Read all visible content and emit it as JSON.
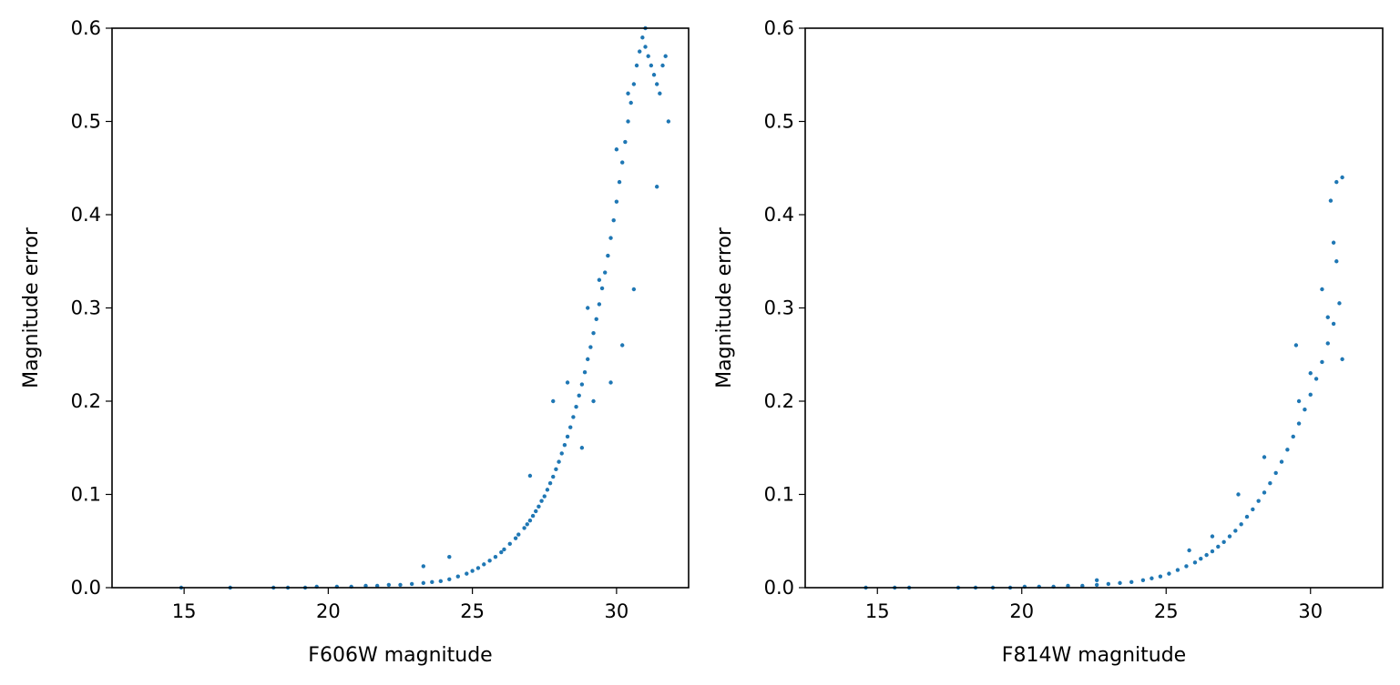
{
  "colors": {
    "marker": "#1f77b4",
    "axis": "#000000",
    "background": "#ffffff"
  },
  "chart_data": [
    {
      "type": "scatter",
      "xlabel": "F606W magnitude",
      "ylabel": "Magnitude error",
      "xlim": [
        12.5,
        32.5
      ],
      "ylim": [
        0.0,
        0.6
      ],
      "xticks": [
        15,
        20,
        25,
        30
      ],
      "yticks": [
        0.0,
        0.1,
        0.2,
        0.3,
        0.4,
        0.5,
        0.6
      ],
      "xtick_labels": [
        "15",
        "20",
        "25",
        "30"
      ],
      "ytick_labels": [
        "0.0",
        "0.1",
        "0.2",
        "0.3",
        "0.4",
        "0.5",
        "0.6"
      ],
      "grid": false,
      "series": [
        {
          "color": "#1f77b4",
          "x": [
            14.9,
            16.6,
            18.1,
            18.6,
            19.2,
            19.6,
            20.3,
            20.8,
            21.3,
            21.7,
            22.1,
            22.5,
            22.9,
            23.3,
            23.6,
            23.9,
            24.2,
            24.5,
            24.8,
            25.0,
            25.2,
            25.4,
            25.6,
            25.8,
            26.0,
            26.1,
            26.3,
            26.5,
            26.6,
            26.8,
            26.9,
            27.0,
            27.1,
            27.2,
            27.3,
            27.4,
            27.5,
            27.6,
            27.7,
            27.8,
            27.9,
            28.0,
            28.1,
            28.2,
            28.3,
            28.4,
            28.5,
            28.6,
            28.7,
            28.8,
            28.9,
            29.0,
            29.1,
            29.2,
            29.3,
            29.4,
            29.5,
            29.6,
            29.7,
            29.8,
            29.9,
            30.0,
            30.1,
            30.2,
            30.3,
            30.4,
            30.5,
            30.6,
            30.7,
            30.8,
            30.9,
            31.0,
            31.1,
            31.2,
            31.3,
            31.4,
            31.5,
            31.6,
            31.7,
            31.8,
            23.3,
            24.2,
            27.0,
            27.8,
            28.3,
            29.0,
            29.4,
            30.0,
            30.4,
            31.0,
            29.8,
            30.2,
            30.6,
            31.4,
            29.2,
            28.8
          ],
          "y": [
            0.0,
            0.0,
            0.0,
            0.0,
            0.0,
            0.001,
            0.001,
            0.001,
            0.002,
            0.002,
            0.003,
            0.003,
            0.004,
            0.005,
            0.006,
            0.007,
            0.009,
            0.012,
            0.015,
            0.018,
            0.021,
            0.025,
            0.029,
            0.033,
            0.038,
            0.041,
            0.047,
            0.053,
            0.057,
            0.064,
            0.068,
            0.072,
            0.077,
            0.082,
            0.087,
            0.093,
            0.098,
            0.105,
            0.112,
            0.119,
            0.127,
            0.135,
            0.144,
            0.153,
            0.162,
            0.172,
            0.183,
            0.194,
            0.206,
            0.218,
            0.231,
            0.245,
            0.258,
            0.273,
            0.288,
            0.304,
            0.321,
            0.338,
            0.356,
            0.375,
            0.394,
            0.414,
            0.435,
            0.456,
            0.478,
            0.5,
            0.52,
            0.54,
            0.56,
            0.575,
            0.59,
            0.58,
            0.57,
            0.56,
            0.55,
            0.54,
            0.53,
            0.56,
            0.57,
            0.5,
            0.023,
            0.033,
            0.12,
            0.2,
            0.22,
            0.3,
            0.33,
            0.47,
            0.53,
            0.6,
            0.22,
            0.26,
            0.32,
            0.43,
            0.2,
            0.15
          ]
        }
      ]
    },
    {
      "type": "scatter",
      "xlabel": "F814W magnitude",
      "ylabel": "Magnitude error",
      "xlim": [
        12.5,
        32.5
      ],
      "ylim": [
        0.0,
        0.6
      ],
      "xticks": [
        15,
        20,
        25,
        30
      ],
      "yticks": [
        0.0,
        0.1,
        0.2,
        0.3,
        0.4,
        0.5,
        0.6
      ],
      "xtick_labels": [
        "15",
        "20",
        "25",
        "30"
      ],
      "ytick_labels": [
        "0.0",
        "0.1",
        "0.2",
        "0.3",
        "0.4",
        "0.5",
        "0.6"
      ],
      "grid": false,
      "series": [
        {
          "color": "#1f77b4",
          "x": [
            14.6,
            15.6,
            16.1,
            17.8,
            18.4,
            19.0,
            19.6,
            20.1,
            20.6,
            21.1,
            21.6,
            22.1,
            22.6,
            23.0,
            23.4,
            23.8,
            24.2,
            24.5,
            24.8,
            25.1,
            25.4,
            25.7,
            26.0,
            26.2,
            26.4,
            26.6,
            26.8,
            27.0,
            27.2,
            27.4,
            27.6,
            27.8,
            28.0,
            28.2,
            28.4,
            28.6,
            28.8,
            29.0,
            29.2,
            29.4,
            29.6,
            29.8,
            30.0,
            30.2,
            30.4,
            30.6,
            30.8,
            31.0,
            22.6,
            25.8,
            26.6,
            27.5,
            28.4,
            29.6,
            29.5,
            30.0,
            30.4,
            30.8,
            30.9,
            31.1,
            30.9,
            30.7,
            31.1,
            30.6
          ],
          "y": [
            0.0,
            0.0,
            0.0,
            0.0,
            0.0,
            0.0,
            0.0,
            0.001,
            0.001,
            0.001,
            0.002,
            0.002,
            0.003,
            0.004,
            0.005,
            0.006,
            0.008,
            0.01,
            0.012,
            0.015,
            0.019,
            0.023,
            0.027,
            0.031,
            0.035,
            0.039,
            0.044,
            0.049,
            0.055,
            0.061,
            0.068,
            0.076,
            0.084,
            0.093,
            0.102,
            0.112,
            0.123,
            0.135,
            0.148,
            0.162,
            0.176,
            0.191,
            0.207,
            0.224,
            0.242,
            0.262,
            0.283,
            0.305,
            0.008,
            0.04,
            0.055,
            0.1,
            0.14,
            0.2,
            0.26,
            0.23,
            0.32,
            0.37,
            0.35,
            0.44,
            0.435,
            0.415,
            0.245,
            0.29
          ]
        }
      ]
    }
  ]
}
